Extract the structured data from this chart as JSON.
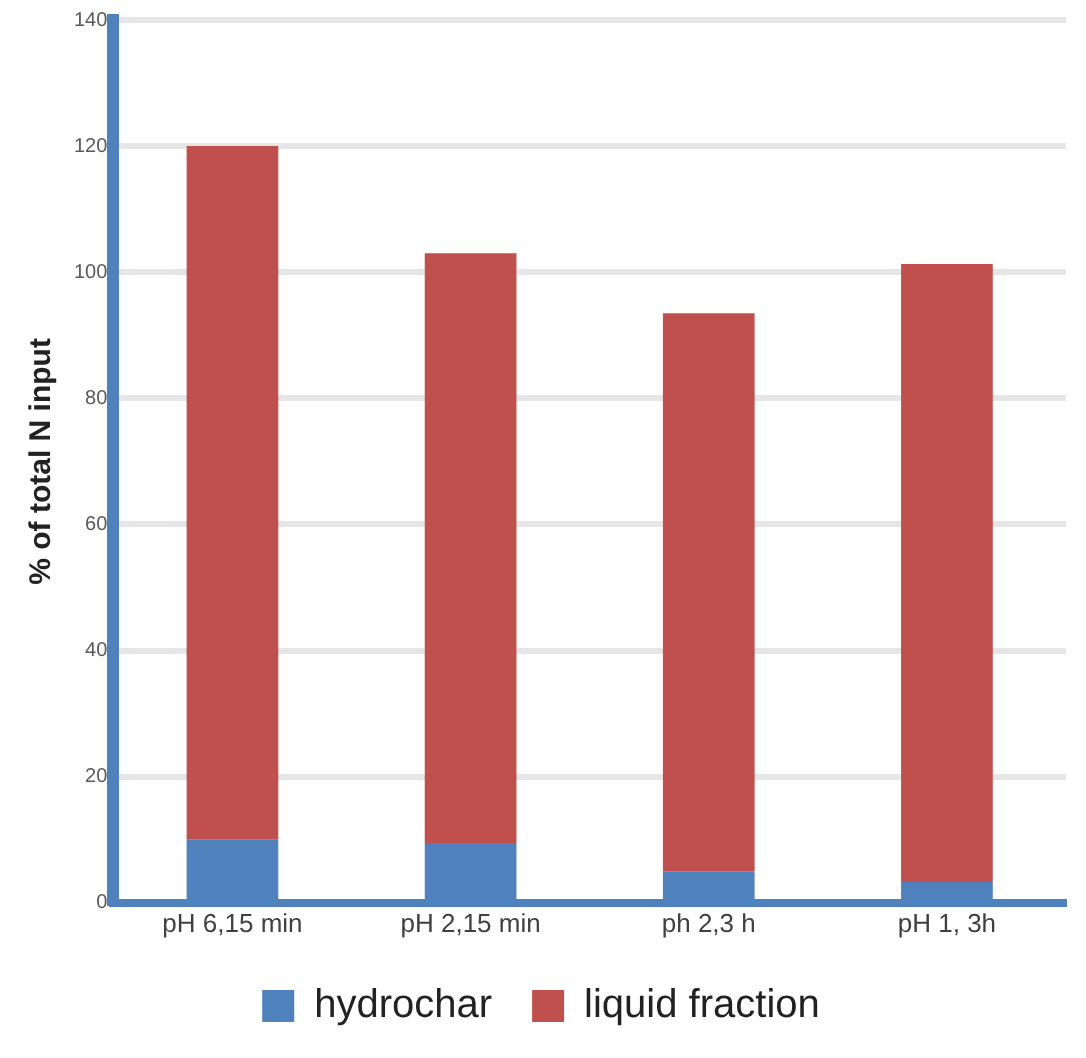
{
  "chart_data": {
    "type": "bar",
    "stacked": true,
    "ylabel": "% of total N input",
    "categories": [
      "pH 6,15 min",
      "pH 2,15 min",
      "ph 2,3 h",
      "pH 1, 3h"
    ],
    "series": [
      {
        "name": "hydrochar",
        "color": "#4f81bd",
        "values": [
          10,
          9.5,
          5,
          3.3
        ]
      },
      {
        "name": "liquid fraction",
        "color": "#c0504d",
        "values": [
          110,
          93.5,
          88.5,
          98
        ]
      }
    ],
    "ylim": [
      0,
      140
    ],
    "yticks": [
      0,
      20,
      40,
      60,
      80,
      100,
      120,
      140
    ],
    "grid": "y",
    "legend": "bottom"
  }
}
